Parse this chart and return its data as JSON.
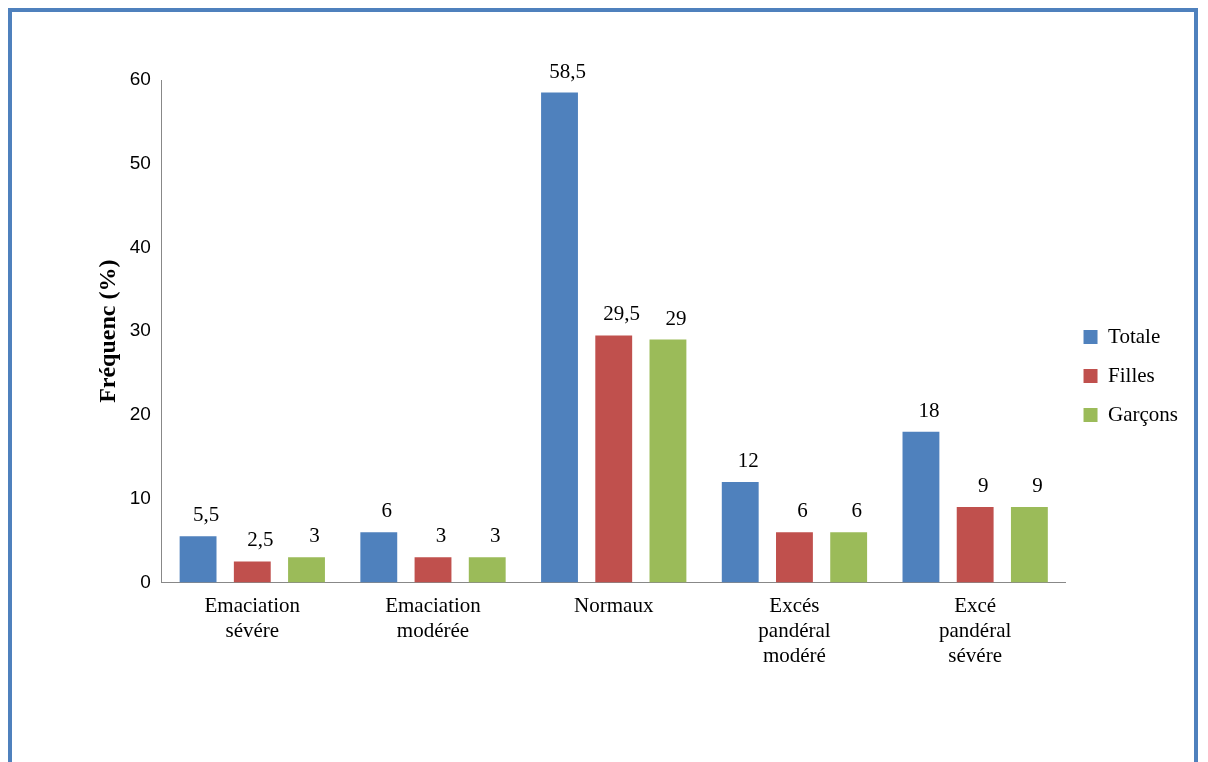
{
  "chart_data": {
    "type": "bar",
    "ylabel": "Fréquenc (%)",
    "categories": [
      "Emaciation sévére",
      "Emaciation modérée",
      "Normaux",
      "Excés pandéral modéré",
      "Excé pandéral sévére"
    ],
    "series": [
      {
        "name": "Totale",
        "color": "#4f81bd",
        "values": [
          5.5,
          6,
          58.5,
          12,
          18
        ],
        "value_labels": [
          "5,5",
          "6",
          "58,5",
          "12",
          "18"
        ]
      },
      {
        "name": "Filles",
        "color": "#c0504d",
        "values": [
          2.5,
          3,
          29.5,
          6,
          9
        ],
        "value_labels": [
          "2,5",
          "3",
          "29,5",
          "6",
          "9"
        ]
      },
      {
        "name": "Garçons",
        "color": "#9bbb59",
        "values": [
          3,
          3,
          29,
          6,
          9
        ],
        "value_labels": [
          "3",
          "3",
          "29",
          "6",
          "9"
        ]
      }
    ],
    "ylim": [
      0,
      60
    ],
    "yticks": [
      0,
      10,
      20,
      30,
      40,
      50,
      60
    ],
    "grid": false,
    "legend": "right"
  }
}
